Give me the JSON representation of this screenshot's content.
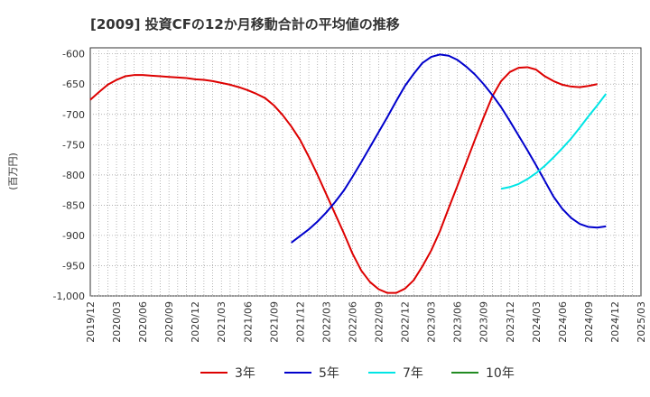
{
  "chart_data": {
    "type": "line",
    "title": "[2009]  投資CFの12か月移動合計の平均値の推移",
    "ylabel": "(百万円)",
    "ylim": [
      -1000,
      -590
    ],
    "yticks": [
      -600,
      -650,
      -700,
      -750,
      -800,
      -850,
      -900,
      -950,
      -1000
    ],
    "ytick_labels": [
      "-600",
      "-650",
      "-700",
      "-750",
      "-800",
      "-850",
      "-900",
      "-950",
      "-1,000"
    ],
    "xtick_labels": [
      "2019/12",
      "2020/03",
      "2020/06",
      "2020/09",
      "2020/12",
      "2021/03",
      "2021/06",
      "2021/09",
      "2021/12",
      "2022/03",
      "2022/06",
      "2022/09",
      "2022/12",
      "2023/03",
      "2023/06",
      "2023/09",
      "2023/12",
      "2024/03",
      "2024/06",
      "2024/09",
      "2024/12",
      "2025/03"
    ],
    "grid": true,
    "legend_position": "bottom",
    "series": [
      {
        "name": "3年",
        "color": "#dd0000",
        "start": "2019/12",
        "values": [
          -676,
          -663,
          -651,
          -643,
          -637,
          -635,
          -635,
          -636,
          -637,
          -638,
          -639,
          -640,
          -642,
          -643,
          -645,
          -648,
          -651,
          -655,
          -660,
          -666,
          -673,
          -685,
          -701,
          -720,
          -742,
          -770,
          -800,
          -832,
          -864,
          -896,
          -930,
          -958,
          -977,
          -989,
          -995,
          -995,
          -988,
          -974,
          -951,
          -925,
          -893,
          -855,
          -818,
          -780,
          -742,
          -705,
          -670,
          -645,
          -630,
          -623,
          -622,
          -626,
          -637,
          -645,
          -651,
          -654,
          -655,
          -653,
          -650
        ]
      },
      {
        "name": "5年",
        "color": "#0000cc",
        "start": "2021/11",
        "values": [
          -912,
          -901,
          -890,
          -877,
          -862,
          -845,
          -826,
          -803,
          -779,
          -754,
          -729,
          -704,
          -678,
          -653,
          -633,
          -615,
          -605,
          -601,
          -603,
          -610,
          -621,
          -634,
          -650,
          -668,
          -688,
          -711,
          -735,
          -759,
          -784,
          -810,
          -836,
          -856,
          -871,
          -881,
          -886,
          -887,
          -885
        ]
      },
      {
        "name": "7年",
        "color": "#00e5e5",
        "start": "2023/11",
        "values": [
          -823,
          -820,
          -815,
          -807,
          -797,
          -785,
          -771,
          -756,
          -740,
          -722,
          -703,
          -685,
          -666
        ]
      },
      {
        "name": "10年",
        "color": "#228b22",
        "start": "2025/03",
        "values": []
      }
    ]
  }
}
